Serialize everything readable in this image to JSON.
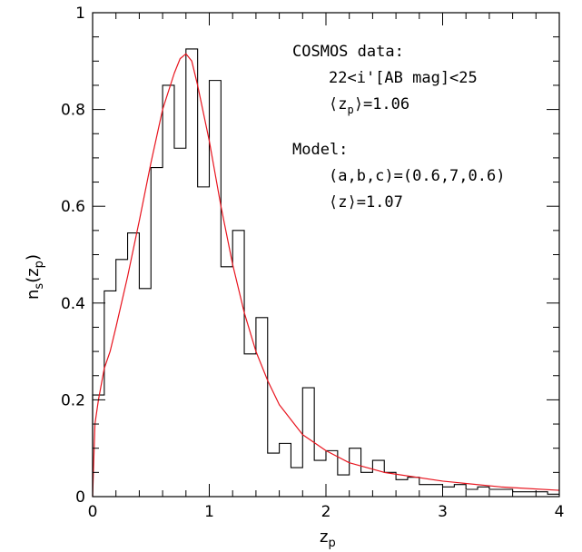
{
  "chart_data": {
    "type": "line",
    "xlabel": "z",
    "xlabel_sub": "p",
    "ylabel": "n",
    "ylabel_sub": "s",
    "ylabel_paren_open": "(z",
    "ylabel_paren_sub": "p",
    "ylabel_paren_close": ")",
    "xlim": [
      0,
      4
    ],
    "ylim": [
      0,
      1
    ],
    "x_ticks": [
      0,
      1,
      2,
      3,
      4
    ],
    "x_tick_labels": [
      "0",
      "1",
      "2",
      "3",
      "4"
    ],
    "y_ticks": [
      0,
      0.2,
      0.4,
      0.6,
      0.8,
      1
    ],
    "y_tick_labels": [
      "0",
      "0.2",
      "0.4",
      "0.6",
      "0.8",
      "1"
    ],
    "grid": false,
    "annotations": {
      "data_title": "COSMOS data:",
      "data_cut": "22<i'[AB mag]<25",
      "data_mean_pre": "⟨z",
      "data_mean_sub": "p",
      "data_mean_post": "⟩=1.06",
      "model_title": "Model:",
      "model_params": "(a,b,c)=(0.6,7,0.6)",
      "model_mean": "⟨z⟩=1.07"
    },
    "series": [
      {
        "style": "histogram",
        "color": "#000000",
        "bin_width": 0.1,
        "bin_edges_start": 0,
        "values": [
          0.21,
          0.425,
          0.49,
          0.545,
          0.43,
          0.68,
          0.85,
          0.72,
          0.925,
          0.64,
          0.86,
          0.475,
          0.55,
          0.295,
          0.37,
          0.09,
          0.11,
          0.06,
          0.225,
          0.075,
          0.095,
          0.045,
          0.1,
          0.05,
          0.075,
          0.05,
          0.035,
          0.04,
          0.025,
          0.025,
          0.02,
          0.025,
          0.015,
          0.02,
          0.015,
          0.015,
          0.01,
          0.01,
          0.01,
          0.005
        ]
      },
      {
        "style": "line",
        "color": "#e8141e",
        "x": [
          0,
          0.02,
          0.05,
          0.1,
          0.15,
          0.2,
          0.3,
          0.4,
          0.5,
          0.6,
          0.7,
          0.75,
          0.8,
          0.85,
          0.9,
          1.0,
          1.1,
          1.2,
          1.3,
          1.4,
          1.5,
          1.6,
          1.8,
          2.0,
          2.2,
          2.5,
          3.0,
          3.5,
          4.0
        ],
        "y": [
          0,
          0.15,
          0.2,
          0.265,
          0.3,
          0.35,
          0.455,
          0.57,
          0.69,
          0.8,
          0.875,
          0.905,
          0.915,
          0.9,
          0.85,
          0.735,
          0.6,
          0.48,
          0.38,
          0.3,
          0.24,
          0.19,
          0.128,
          0.095,
          0.07,
          0.05,
          0.032,
          0.02,
          0.013
        ]
      }
    ]
  }
}
